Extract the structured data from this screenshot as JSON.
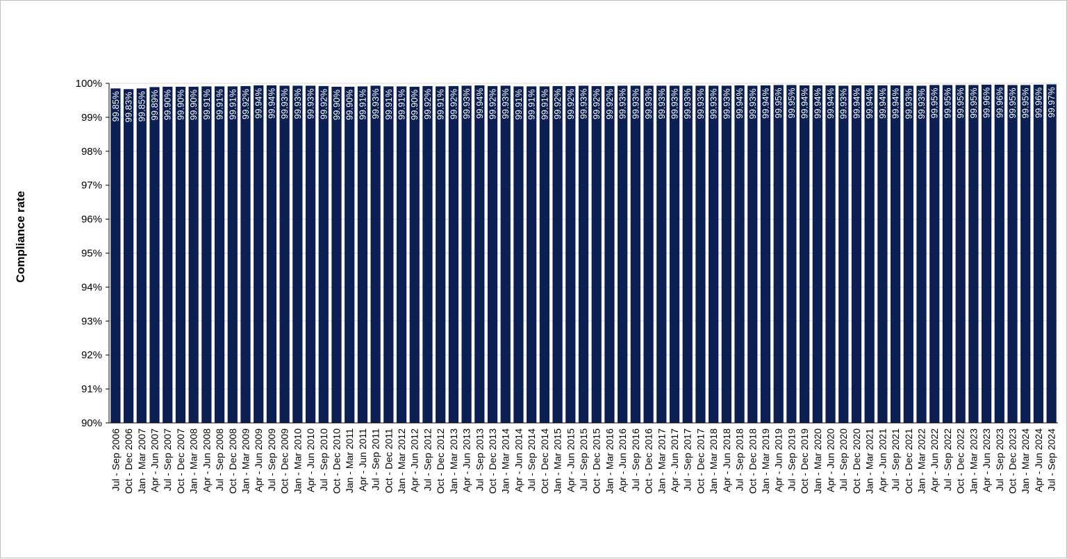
{
  "chart_data": {
    "type": "bar",
    "title": "",
    "xlabel": "",
    "ylabel": "Compliance rate",
    "ylim": [
      90,
      100
    ],
    "yticks": [
      "90%",
      "91%",
      "92%",
      "93%",
      "94%",
      "95%",
      "96%",
      "97%",
      "98%",
      "99%",
      "100%"
    ],
    "grid": true,
    "legend": "none",
    "bar_color": "#0b1f52",
    "categories": [
      "Jul - Sep 2006",
      "Oct - Dec 2006",
      "Jan - Mar 2007",
      "Apr - Jun 2007",
      "Jul - Sep 2007",
      "Oct - Dec 2007",
      "Jan - Mar 2008",
      "Apr - Jun 2008",
      "Jul - Sep 2008",
      "Oct - Dec 2008",
      "Jan - Mar 2009",
      "Apr - Jun 2009",
      "Jul - Sep 2009",
      "Oct - Dec 2009",
      "Jan - Mar 2010",
      "Apr - Jun 2010",
      "Jul - Sep 2010",
      "Oct - Dec 2010",
      "Jan - Mar 2011",
      "Apr - Jun 2011",
      "Jul - Sep 2011",
      "Oct - Dec 2011",
      "Jan - Mar 2012",
      "Apr - Jun 2012",
      "Jul - Sep 2012",
      "Oct - Dec 2012",
      "Jan - Mar 2013",
      "Apr - Jun 2013",
      "Jul - Sep 2013",
      "Oct - Dec 2013",
      "Jan - Mar 2014",
      "Apr - Jun 2014",
      "Jul - Sep 2014",
      "Oct - Dec 2014",
      "Jan - Mar 2015",
      "Apr - Jun 2015",
      "Jul - Sep 2015",
      "Oct - Dec 2015",
      "Jan - Mar 2016",
      "Apr - Jun 2016",
      "Jul - Sep 2016",
      "Oct - Dec 2016",
      "Jan - Mar 2017",
      "Apr - Jun 2017",
      "Jul - Sep 2017",
      "Oct - Dec 2017",
      "Jan - Mar 2018",
      "Apr - Jun 2018",
      "Jul - Sep 2018",
      "Oct - Dec 2018",
      "Jan - Mar 2019",
      "Apr - Jun 2019",
      "Jul - Sep 2019",
      "Oct - Dec 2019",
      "Jan - Mar 2020",
      "Apr - Jun 2020",
      "Jul - Sep 2020",
      "Oct - Dec 2020",
      "Jan - Mar 2021",
      "Apr - Jun 2021",
      "Jul - Sep 2021",
      "Oct - Dec 2021",
      "Jan - Mar 2022",
      "Apr - Jun 2022",
      "Jul - Sep 2022",
      "Oct - Dec 2022",
      "Jan - Mar 2023",
      "Apr - Jun 2023",
      "Jul - Sep 2023",
      "Oct - Dec 2023",
      "Jan - Mar 2024",
      "Apr - Jun 2024",
      "Jul - Sep 2024"
    ],
    "values": [
      99.85,
      99.83,
      99.85,
      99.89,
      99.9,
      99.9,
      99.9,
      99.91,
      99.91,
      99.91,
      99.92,
      99.94,
      99.94,
      99.93,
      99.93,
      99.93,
      99.92,
      99.9,
      99.9,
      99.91,
      99.93,
      99.91,
      99.91,
      99.9,
      99.92,
      99.91,
      99.92,
      99.93,
      99.94,
      99.92,
      99.93,
      99.91,
      99.91,
      99.91,
      99.92,
      99.92,
      99.93,
      99.92,
      99.92,
      99.93,
      99.93,
      99.93,
      99.93,
      99.93,
      99.93,
      99.93,
      99.93,
      99.93,
      99.94,
      99.93,
      99.94,
      99.95,
      99.95,
      99.94,
      99.94,
      99.94,
      99.93,
      99.94,
      99.94,
      99.94,
      99.94,
      99.93,
      99.93,
      99.95,
      99.95,
      99.95,
      99.95,
      99.96,
      99.96,
      99.95,
      99.95,
      99.96,
      99.97
    ],
    "value_labels": [
      "99.85%",
      "99.83%",
      "99.85%",
      "99.89%",
      "99.90%",
      "99.90%",
      "99.90%",
      "99.91%",
      "99.91%",
      "99.91%",
      "99.92%",
      "99.94%",
      "99.94%",
      "99.93%",
      "99.93%",
      "99.93%",
      "99.92%",
      "99.90%",
      "99.90%",
      "99.91%",
      "99.93%",
      "99.91%",
      "99.91%",
      "99.90%",
      "99.92%",
      "99.91%",
      "99.92%",
      "99.93%",
      "99.94%",
      "99.92%",
      "99.93%",
      "99.91%",
      "99.91%",
      "99.91%",
      "99.92%",
      "99.92%",
      "99.93%",
      "99.92%",
      "99.92%",
      "99.93%",
      "99.93%",
      "99.93%",
      "99.93%",
      "99.93%",
      "99.93%",
      "99.93%",
      "99.93%",
      "99.93%",
      "99.94%",
      "99.93%",
      "99.94%",
      "99.95%",
      "99.95%",
      "99.94%",
      "99.94%",
      "99.94%",
      "99.93%",
      "99.94%",
      "99.94%",
      "99.94%",
      "99.94%",
      "99.93%",
      "99.93%",
      "99.95%",
      "99.95%",
      "99.95%",
      "99.95%",
      "99.96%",
      "99.96%",
      "99.95%",
      "99.95%",
      "99.96%",
      "99.97%"
    ]
  }
}
